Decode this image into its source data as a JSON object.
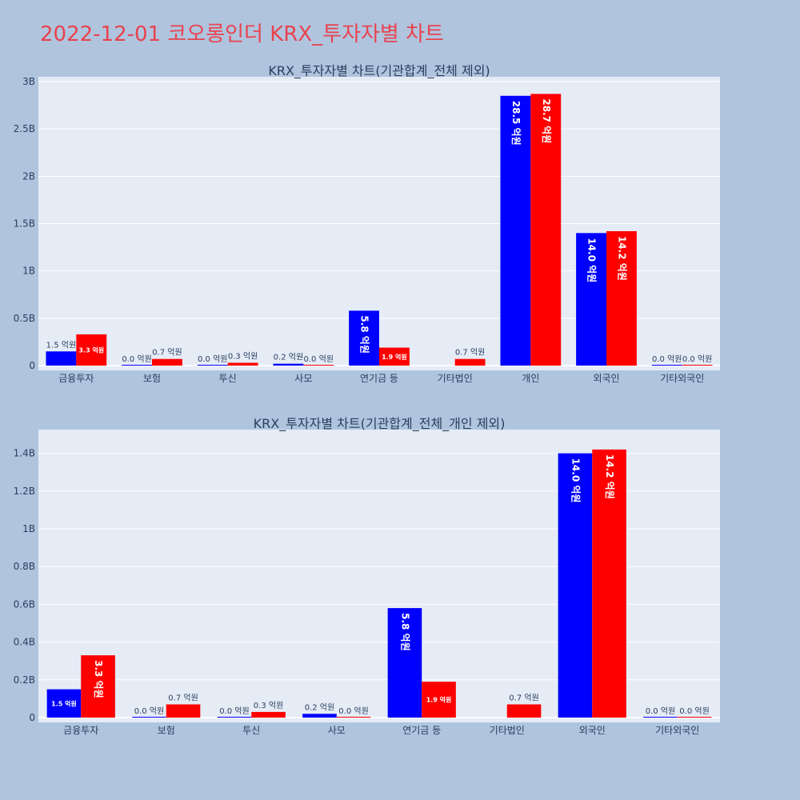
{
  "title": "2022-12-01 코오롱인더 KRX_투자자별 차트",
  "colors": {
    "title": "#e8434f",
    "background": "#b0c4de",
    "plot_background": "#e5ecf6",
    "series_1": "#0000ff",
    "series_2": "#ff0000"
  },
  "chart_data": [
    {
      "type": "bar",
      "title": "KRX_투자자별 차트(기관합계_전체 제외)",
      "categories": [
        "금융투자",
        "보험",
        "투신",
        "사모",
        "연기금 등",
        "기타법인",
        "개인",
        "외국인",
        "기타외국인"
      ],
      "series": [
        {
          "color": "#0000ff",
          "values": [
            0.15,
            0.0,
            0.0,
            0.02,
            0.58,
            0.0,
            2.85,
            1.4,
            0.0
          ],
          "labels": [
            "1.5 억원",
            "0.0 억원",
            "0.0 억원",
            "0.2 억원",
            "5.8 억원",
            "",
            "28.5 억원",
            "14.0 억원",
            "0.0 억원"
          ]
        },
        {
          "color": "#ff0000",
          "values": [
            0.33,
            0.07,
            0.03,
            0.0,
            0.19,
            0.07,
            2.87,
            1.42,
            0.0
          ],
          "labels": [
            "3.3 억원",
            "0.7 억원",
            "0.3 억원",
            "0.0 억원",
            "1.9 억원",
            "0.7 억원",
            "28.7 억원",
            "14.2 억원",
            "0.0 억원"
          ]
        }
      ],
      "ylim": [
        0,
        3.0
      ],
      "yticks": [
        0,
        0.5,
        1,
        1.5,
        2,
        2.5,
        3
      ],
      "ytick_labels": [
        "0",
        "0.5B",
        "1B",
        "1.5B",
        "2B",
        "2.5B",
        "3B"
      ],
      "grid": true
    },
    {
      "type": "bar",
      "title": "KRX_투자자별 차트(기관합계_전체_개인 제외)",
      "categories": [
        "금융투자",
        "보험",
        "투신",
        "사모",
        "연기금 등",
        "기타법인",
        "외국인",
        "기타외국인"
      ],
      "series": [
        {
          "color": "#0000ff",
          "values": [
            0.15,
            0.0,
            0.0,
            0.02,
            0.58,
            0.0,
            1.4,
            0.0
          ],
          "labels": [
            "1.5 억원",
            "0.0 억원",
            "0.0 억원",
            "0.2 억원",
            "5.8 억원",
            "",
            "14.0 억원",
            "0.0 억원"
          ]
        },
        {
          "color": "#ff0000",
          "values": [
            0.33,
            0.07,
            0.03,
            0.0,
            0.19,
            0.07,
            1.42,
            0.0
          ],
          "labels": [
            "3.3 억원",
            "0.7 억원",
            "0.3 억원",
            "0.0 억원",
            "1.9 억원",
            "0.7 억원",
            "14.2 억원",
            "0.0 억원"
          ]
        }
      ],
      "ylim": [
        0,
        1.5
      ],
      "yticks": [
        0,
        0.2,
        0.4,
        0.6,
        0.8,
        1.0,
        1.2,
        1.4
      ],
      "ytick_labels": [
        "0",
        "0.2B",
        "0.4B",
        "0.6B",
        "0.8B",
        "1B",
        "1.2B",
        "1.4B"
      ],
      "grid": true
    }
  ]
}
